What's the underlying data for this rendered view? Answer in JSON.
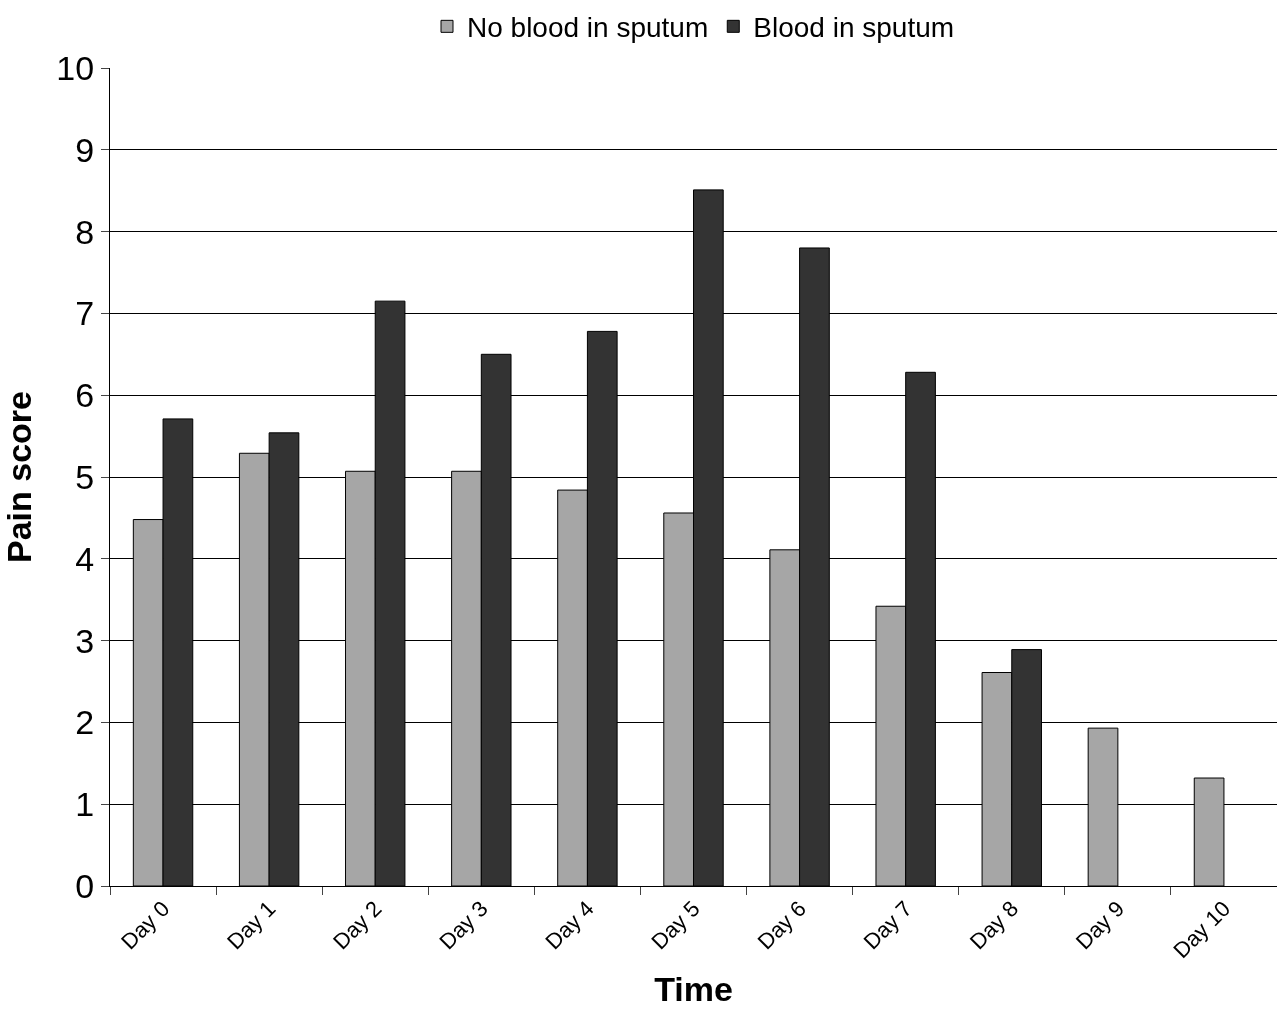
{
  "chart_data": {
    "type": "bar",
    "xlabel": "Time",
    "ylabel": "Pain score",
    "categories": [
      "Day 0",
      "Day 1",
      "Day 2",
      "Day 3",
      "Day 4",
      "Day 5",
      "Day 6",
      "Day 7",
      "Day 8",
      "Day 9",
      "Day 10"
    ],
    "series": [
      {
        "name": "No blood in sputum",
        "color": "#a6a6a6",
        "values": [
          4.48,
          5.29,
          5.07,
          5.07,
          4.84,
          4.56,
          4.11,
          3.42,
          2.61,
          1.93,
          1.32
        ]
      },
      {
        "name": "Blood in sputum",
        "color": "#333333",
        "values": [
          5.71,
          5.54,
          7.15,
          6.5,
          6.78,
          8.51,
          7.8,
          6.28,
          2.89,
          null,
          null
        ]
      }
    ],
    "ylim": [
      0,
      10
    ],
    "yticks": [
      0,
      1,
      2,
      3,
      4,
      5,
      6,
      7,
      8,
      9,
      10
    ],
    "grid": "y",
    "legend": "top"
  }
}
